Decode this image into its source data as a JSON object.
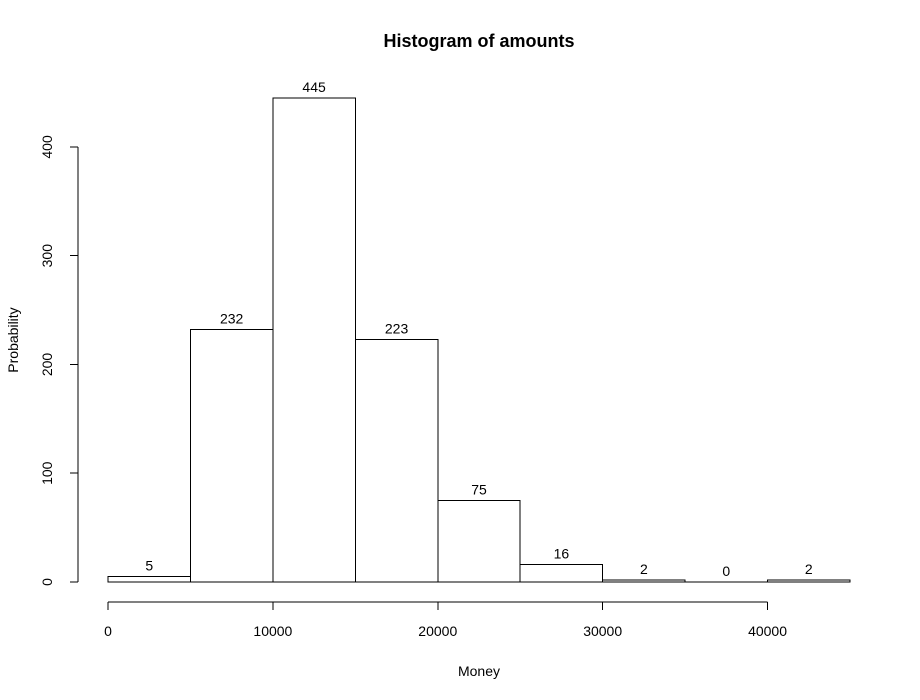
{
  "chart_data": {
    "type": "bar",
    "title": "Histogram of amounts",
    "xlabel": "Money",
    "ylabel": "Probability",
    "bins": [
      [
        0,
        5000
      ],
      [
        5000,
        10000
      ],
      [
        10000,
        15000
      ],
      [
        15000,
        20000
      ],
      [
        20000,
        25000
      ],
      [
        25000,
        30000
      ],
      [
        30000,
        35000
      ],
      [
        35000,
        40000
      ],
      [
        40000,
        45000
      ]
    ],
    "values": [
      5,
      232,
      445,
      223,
      75,
      16,
      2,
      0,
      2
    ],
    "data_labels": [
      "5",
      "232",
      "445",
      "223",
      "75",
      "16",
      "2",
      "0",
      "2"
    ],
    "xticks": [
      0,
      10000,
      20000,
      30000,
      40000
    ],
    "xtick_labels": [
      "0",
      "10000",
      "20000",
      "30000",
      "40000"
    ],
    "yticks": [
      0,
      100,
      200,
      300,
      400
    ],
    "ytick_labels": [
      "0",
      "100",
      "200",
      "300",
      "400"
    ],
    "xlim": [
      0,
      45000
    ],
    "ylim": [
      0,
      445
    ],
    "grid": false,
    "legend": "none",
    "colors": {
      "bar_fill": "#ffffff",
      "bar_stroke": "#000000",
      "axis": "#000000",
      "text": "#000000"
    }
  }
}
